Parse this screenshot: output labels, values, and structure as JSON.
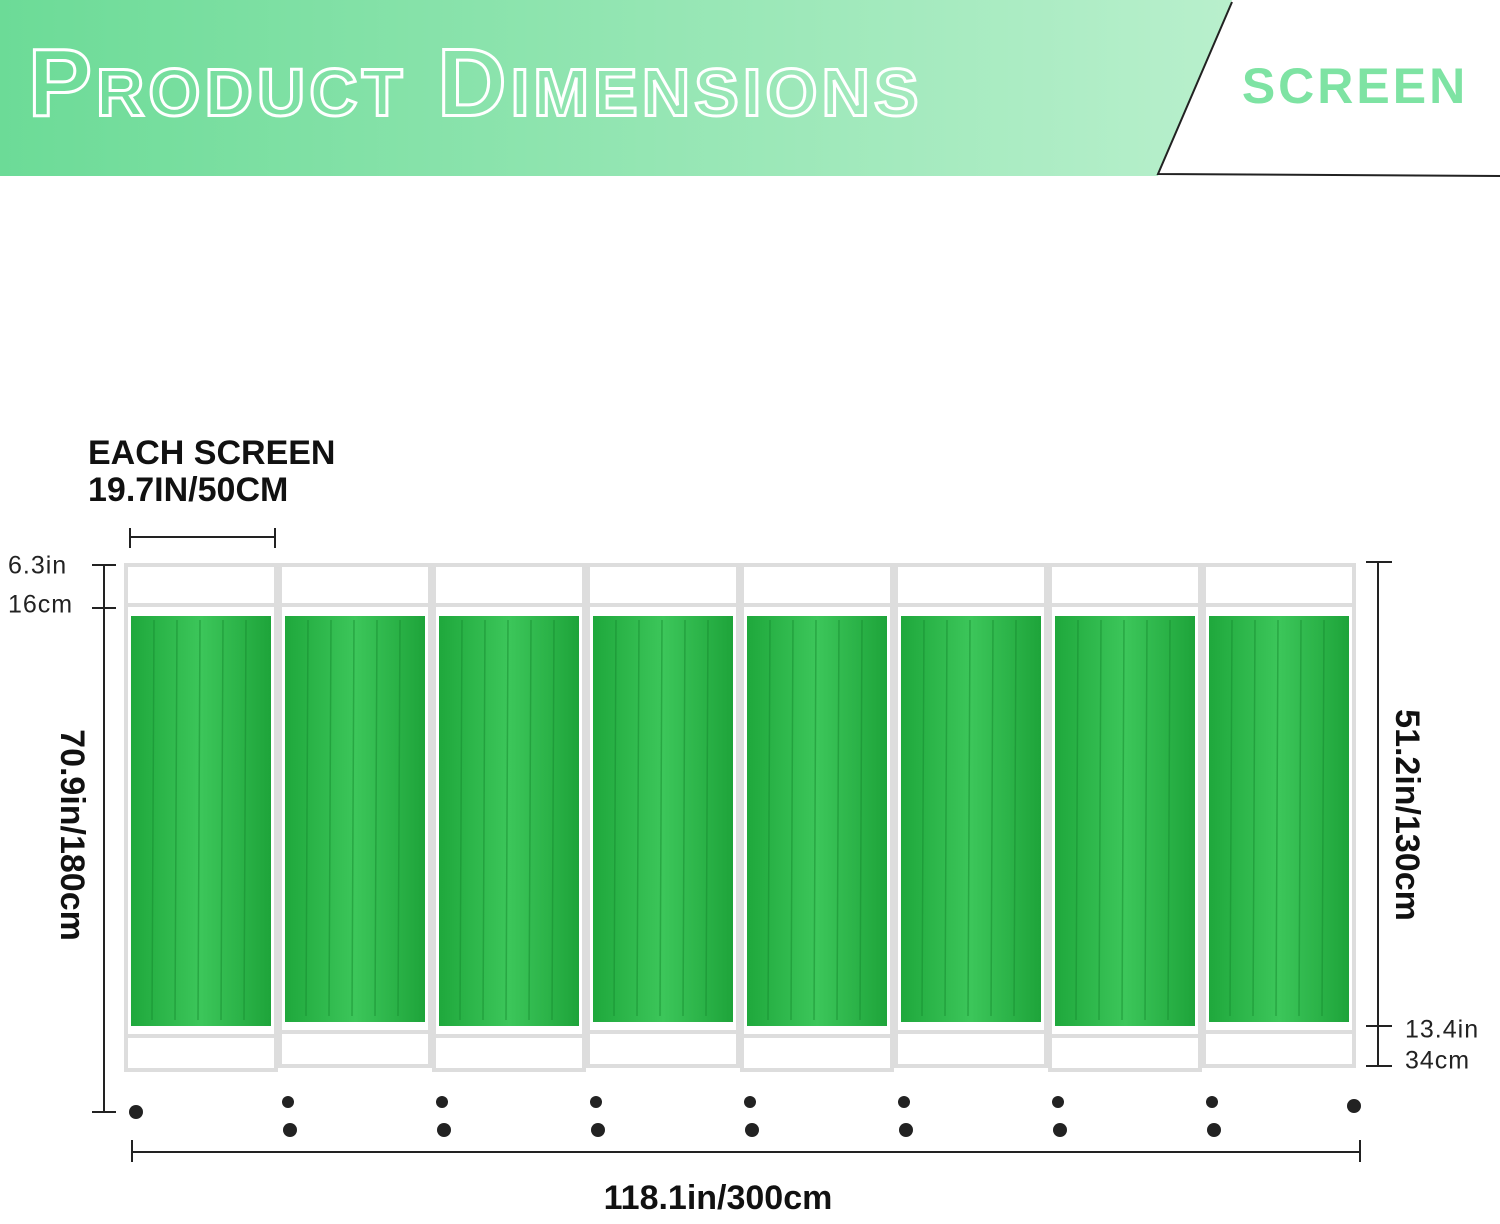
{
  "header": {
    "title": "Product Dimensions",
    "badge": "SCREEN"
  },
  "labels": {
    "each_screen": "EACH SCREEN",
    "each_width": "19.7IN/50CM",
    "top_gap_in": "6.3in",
    "top_gap_cm": "16cm",
    "total_height": "70.9in/180cm",
    "curtain_height": "51.2in/130cm",
    "bottom_gap_in": "13.4in",
    "bottom_gap_cm": "34cm",
    "total_width": "118.1in/300cm"
  }
}
